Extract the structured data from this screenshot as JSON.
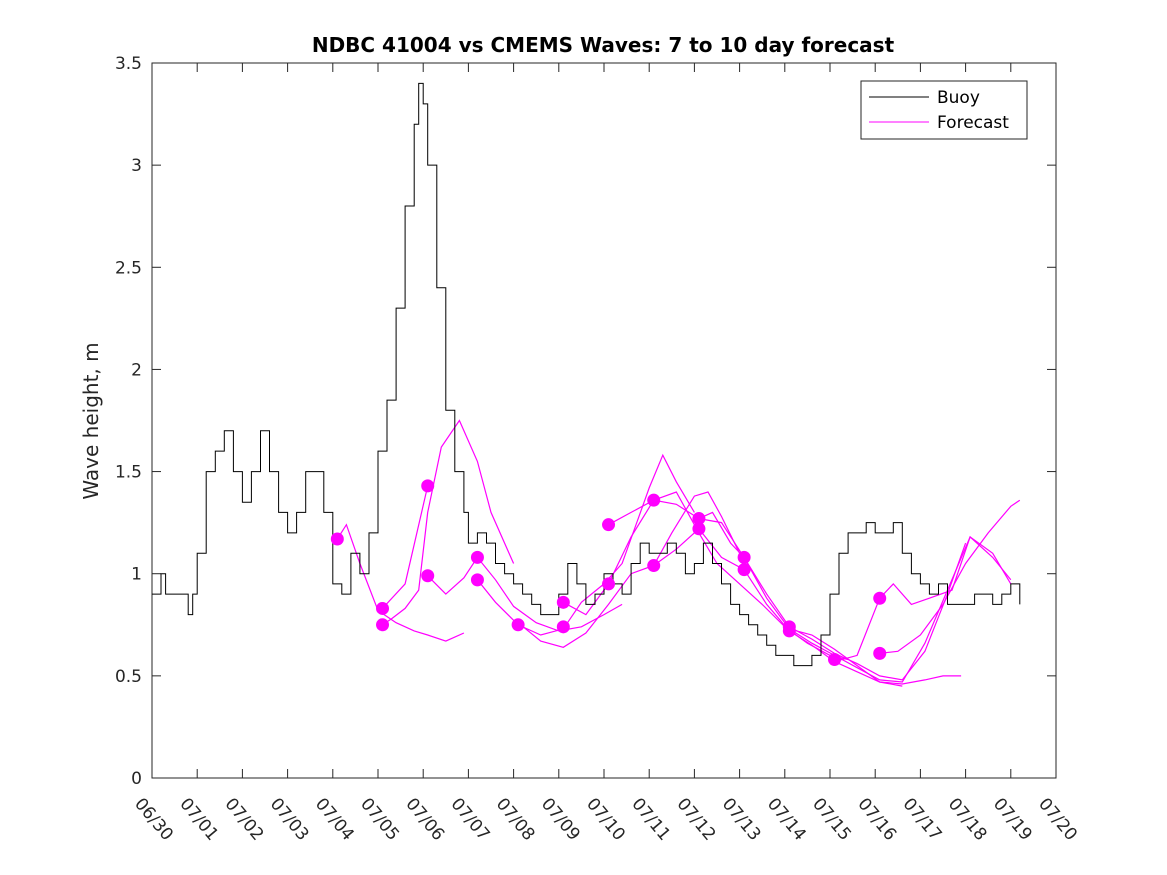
{
  "chart_data": {
    "type": "line",
    "title": "NDBC 41004 vs CMEMS Waves: 7 to 10 day forecast",
    "xlabel": "",
    "ylabel": "Wave height, m",
    "x_tick_labels": [
      "06/30",
      "07/01",
      "07/02",
      "07/03",
      "07/04",
      "07/05",
      "07/06",
      "07/07",
      "07/08",
      "07/09",
      "07/10",
      "07/11",
      "07/12",
      "07/13",
      "07/14",
      "07/15",
      "07/16",
      "07/17",
      "07/18",
      "07/19",
      "07/20"
    ],
    "xlim_days": [
      0,
      20
    ],
    "ylim": [
      0,
      3.5
    ],
    "y_ticks": [
      0,
      0.5,
      1,
      1.5,
      2,
      2.5,
      3,
      3.5
    ],
    "y_tick_labels": [
      "0",
      "0.5",
      "1",
      "1.5",
      "2",
      "2.5",
      "3",
      "3.5"
    ],
    "legend": {
      "placement": "top-right",
      "entries": [
        "Buoy",
        "Forecast"
      ]
    },
    "colors": {
      "buoy": "#000000",
      "forecast": "#ff00ff",
      "axis": "#262626"
    },
    "series": [
      {
        "name": "Buoy",
        "x": [
          0.0,
          0.2,
          0.3,
          0.5,
          0.8,
          0.9,
          1.0,
          1.2,
          1.4,
          1.6,
          1.8,
          2.0,
          2.2,
          2.4,
          2.6,
          2.8,
          3.0,
          3.2,
          3.4,
          3.6,
          3.8,
          4.0,
          4.2,
          4.4,
          4.6,
          4.8,
          5.0,
          5.2,
          5.4,
          5.6,
          5.8,
          5.9,
          6.0,
          6.1,
          6.3,
          6.5,
          6.7,
          6.9,
          7.0,
          7.2,
          7.4,
          7.6,
          7.8,
          8.0,
          8.2,
          8.4,
          8.6,
          8.8,
          9.0,
          9.2,
          9.4,
          9.6,
          9.8,
          10.0,
          10.2,
          10.4,
          10.6,
          10.8,
          11.0,
          11.2,
          11.4,
          11.6,
          11.8,
          12.0,
          12.2,
          12.4,
          12.6,
          12.8,
          13.0,
          13.2,
          13.4,
          13.6,
          13.8,
          14.0,
          14.2,
          14.4,
          14.6,
          14.8,
          15.0,
          15.2,
          15.4,
          15.6,
          15.8,
          16.0,
          16.2,
          16.4,
          16.6,
          16.8,
          17.0,
          17.2,
          17.4,
          17.6,
          17.8,
          18.0,
          18.2,
          18.4,
          18.6,
          18.8,
          19.0,
          19.2
        ],
        "y": [
          0.9,
          1.0,
          0.9,
          0.9,
          0.8,
          0.9,
          1.1,
          1.5,
          1.6,
          1.7,
          1.5,
          1.35,
          1.5,
          1.7,
          1.5,
          1.3,
          1.2,
          1.3,
          1.5,
          1.5,
          1.3,
          0.95,
          0.9,
          1.1,
          1.0,
          1.2,
          1.6,
          1.85,
          2.3,
          2.8,
          3.2,
          3.4,
          3.3,
          3.0,
          2.4,
          1.8,
          1.5,
          1.3,
          1.15,
          1.2,
          1.15,
          1.05,
          1.0,
          0.95,
          0.9,
          0.85,
          0.8,
          0.8,
          0.9,
          1.05,
          0.95,
          0.85,
          0.9,
          1.0,
          0.95,
          0.9,
          1.05,
          1.15,
          1.1,
          1.1,
          1.15,
          1.1,
          1.0,
          1.05,
          1.15,
          1.05,
          0.95,
          0.85,
          0.8,
          0.75,
          0.7,
          0.65,
          0.6,
          0.6,
          0.55,
          0.55,
          0.6,
          0.7,
          0.9,
          1.1,
          1.2,
          1.2,
          1.25,
          1.2,
          1.2,
          1.25,
          1.1,
          1.0,
          0.95,
          0.9,
          0.95,
          0.85,
          0.85,
          0.85,
          0.9,
          0.9,
          0.85,
          0.9,
          0.95,
          0.85
        ]
      },
      {
        "name": "Forecast",
        "segments": [
          {
            "x": [
              4.1,
              4.3,
              4.6,
              5.0,
              5.4,
              5.8,
              6.1,
              6.5,
              6.9
            ],
            "y": [
              1.17,
              1.24,
              1.05,
              0.82,
              0.76,
              0.72,
              0.7,
              0.67,
              0.71
            ]
          },
          {
            "x": [
              5.1,
              5.3,
              5.6,
              5.9,
              6.1,
              6.4,
              6.8,
              7.2,
              7.5,
              8.0
            ],
            "y": [
              0.75,
              0.78,
              0.83,
              0.92,
              1.3,
              1.62,
              1.75,
              1.55,
              1.3,
              1.05
            ]
          },
          {
            "x": [
              6.1,
              6.5,
              6.9,
              7.2,
              7.6,
              8.0,
              8.5,
              9.0,
              9.5,
              10.0,
              10.4
            ],
            "y": [
              0.99,
              0.9,
              0.98,
              1.08,
              0.97,
              0.84,
              0.76,
              0.72,
              0.74,
              0.8,
              0.85
            ]
          },
          {
            "x": [
              5.1,
              5.6,
              6.1
            ],
            "y": [
              0.83,
              0.95,
              1.43
            ]
          },
          {
            "x": [
              7.2,
              7.6,
              8.1,
              8.6,
              9.1,
              9.5,
              10.0,
              10.4,
              11.0,
              11.3,
              11.6,
              12.0
            ],
            "y": [
              0.97,
              0.86,
              0.75,
              0.7,
              0.73,
              0.86,
              0.95,
              1.05,
              1.42,
              1.58,
              1.45,
              1.3
            ]
          },
          {
            "x": [
              8.1,
              8.6,
              9.1,
              9.6,
              10.1,
              10.6,
              11.1,
              11.5,
              12.0,
              12.3,
              12.6,
              13.0
            ],
            "y": [
              0.76,
              0.67,
              0.64,
              0.71,
              0.85,
              1.0,
              1.04,
              1.2,
              1.38,
              1.4,
              1.28,
              1.1
            ]
          },
          {
            "x": [
              9.1,
              9.6,
              10.1,
              10.6,
              11.1,
              11.6,
              12.1,
              12.4,
              12.8,
              13.1
            ],
            "y": [
              0.86,
              0.8,
              0.95,
              1.18,
              1.36,
              1.34,
              1.27,
              1.3,
              1.15,
              1.08
            ]
          },
          {
            "x": [
              10.1,
              10.6,
              11.1,
              11.6,
              12.1,
              12.5,
              13.0,
              13.5,
              14.0,
              14.5,
              15.0,
              15.4
            ],
            "y": [
              1.24,
              1.3,
              1.36,
              1.4,
              1.2,
              1.05,
              0.95,
              0.85,
              0.74,
              0.66,
              0.6,
              0.58
            ]
          },
          {
            "x": [
              11.1,
              11.6,
              12.1,
              12.6,
              13.1,
              13.6,
              14.1,
              14.6,
              15.1,
              15.6,
              16.1,
              16.6
            ],
            "y": [
              1.04,
              1.12,
              1.22,
              1.08,
              1.02,
              0.85,
              0.72,
              0.65,
              0.57,
              0.52,
              0.47,
              0.45
            ]
          },
          {
            "x": [
              12.1,
              12.6,
              13.1,
              13.6,
              14.1,
              14.6,
              15.1,
              15.6,
              16.1,
              16.6,
              17.1,
              17.6,
              18.0
            ],
            "y": [
              1.27,
              1.25,
              1.08,
              0.9,
              0.74,
              0.68,
              0.61,
              0.56,
              0.5,
              0.48,
              0.62,
              0.9,
              1.15
            ]
          },
          {
            "x": [
              13.1,
              13.6,
              14.1,
              14.6,
              15.1,
              15.6,
              16.1,
              16.6,
              17.1,
              17.6,
              18.1,
              18.6,
              19.0
            ],
            "y": [
              1.08,
              0.88,
              0.73,
              0.66,
              0.6,
              0.54,
              0.48,
              0.47,
              0.66,
              0.92,
              1.18,
              1.1,
              0.95
            ]
          },
          {
            "x": [
              14.1,
              14.6,
              15.1,
              15.6,
              16.1,
              16.6,
              17.1,
              17.5,
              17.9
            ],
            "y": [
              0.73,
              0.7,
              0.63,
              0.55,
              0.47,
              0.46,
              0.48,
              0.5,
              0.5
            ]
          },
          {
            "x": [
              15.1,
              15.6,
              16.1,
              16.4,
              16.8,
              17.2,
              17.7,
              18.1,
              18.6,
              19.0
            ],
            "y": [
              0.57,
              0.6,
              0.88,
              0.95,
              0.85,
              0.88,
              0.92,
              1.18,
              1.08,
              0.97
            ]
          },
          {
            "x": [
              16.1,
              16.5,
              17.0,
              17.5,
              18.0,
              18.5,
              19.0,
              19.2
            ],
            "y": [
              0.61,
              0.62,
              0.7,
              0.85,
              1.05,
              1.2,
              1.33,
              1.36
            ]
          }
        ],
        "markers": {
          "x": [
            4.1,
            5.1,
            5.1,
            6.1,
            6.1,
            7.2,
            7.2,
            8.1,
            9.1,
            9.1,
            10.1,
            10.1,
            11.1,
            11.1,
            12.1,
            12.1,
            13.1,
            13.1,
            14.1,
            14.1,
            15.1,
            16.1,
            16.1
          ],
          "y": [
            1.17,
            0.83,
            0.75,
            1.43,
            0.99,
            1.08,
            0.97,
            0.75,
            0.86,
            0.74,
            1.24,
            0.95,
            1.36,
            1.04,
            1.27,
            1.22,
            1.08,
            1.02,
            0.74,
            0.72,
            0.58,
            0.88,
            0.61
          ]
        }
      }
    ]
  }
}
